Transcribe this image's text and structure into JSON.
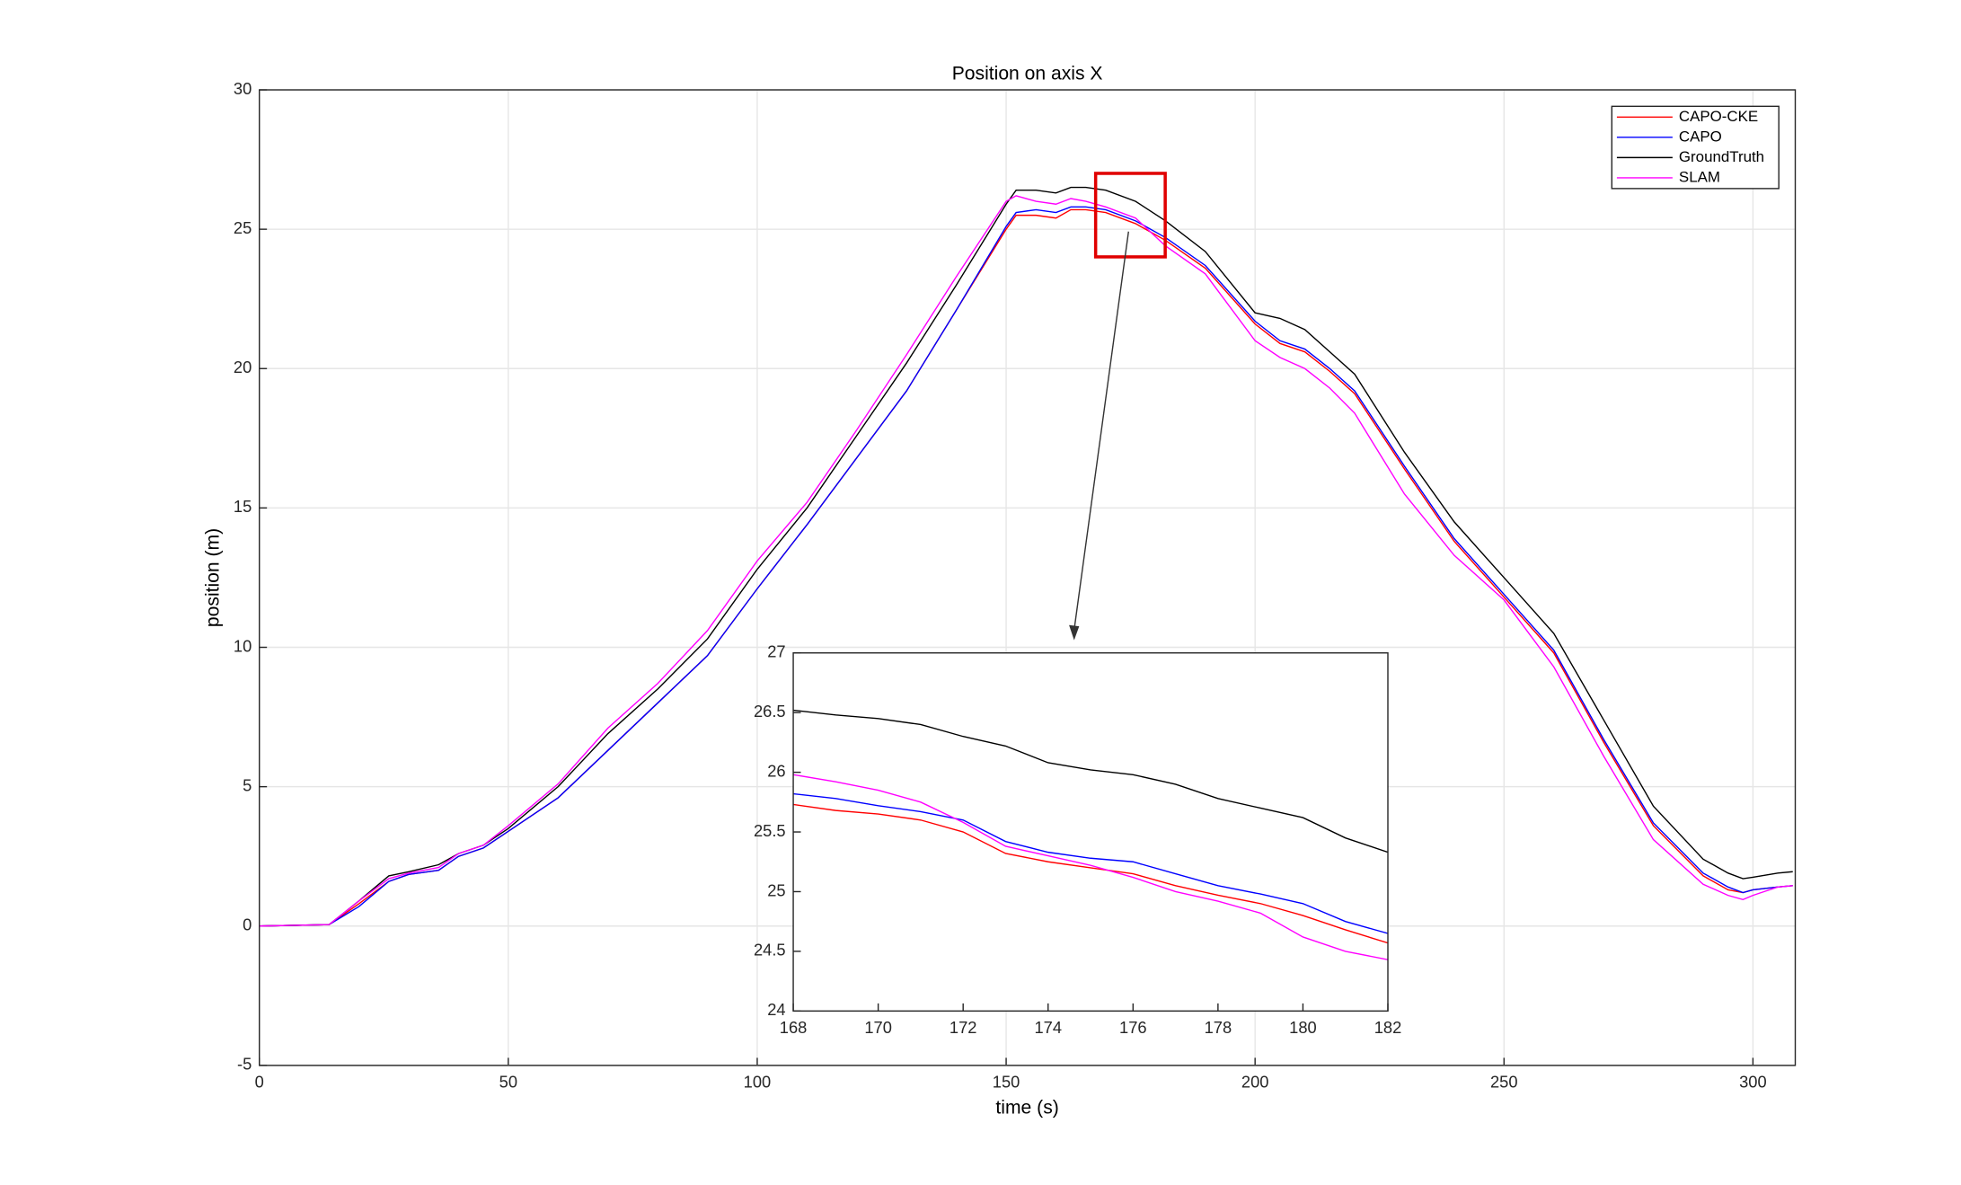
{
  "chart_data": [
    {
      "type": "line",
      "title": "Position on axis X",
      "x_label": "time (s)",
      "y_label": "position (m)",
      "x": [
        0,
        14,
        20,
        26,
        30,
        36,
        40,
        45,
        50,
        60,
        70,
        80,
        90,
        100,
        110,
        120,
        130,
        140,
        150,
        152,
        156,
        160,
        163,
        166,
        170,
        176,
        182,
        190,
        200,
        205,
        210,
        215,
        220,
        230,
        240,
        250,
        260,
        270,
        280,
        290,
        295,
        298,
        300,
        305,
        308
      ],
      "series": [
        {
          "name": "CAPO-CKE",
          "color": "#ff0000",
          "values": [
            0,
            0.05,
            0.8,
            1.6,
            1.85,
            2.0,
            2.5,
            2.8,
            3.4,
            4.6,
            6.3,
            8.0,
            9.7,
            12.1,
            14.4,
            16.8,
            19.2,
            22.1,
            25.0,
            25.5,
            25.5,
            25.4,
            25.7,
            25.7,
            25.6,
            25.2,
            24.6,
            23.6,
            21.6,
            20.9,
            20.6,
            19.9,
            19.1,
            16.4,
            13.8,
            11.8,
            9.8,
            6.6,
            3.6,
            1.8,
            1.3,
            1.2,
            1.3,
            1.4,
            1.45
          ]
        },
        {
          "name": "CAPO",
          "color": "#0000ff",
          "values": [
            0,
            0.05,
            0.7,
            1.6,
            1.85,
            2.0,
            2.5,
            2.8,
            3.4,
            4.6,
            6.3,
            8.0,
            9.7,
            12.1,
            14.4,
            16.8,
            19.2,
            22.1,
            25.1,
            25.6,
            25.7,
            25.6,
            25.8,
            25.8,
            25.7,
            25.3,
            24.7,
            23.7,
            21.7,
            21.0,
            20.7,
            20.0,
            19.2,
            16.5,
            13.9,
            11.9,
            9.9,
            6.7,
            3.7,
            1.9,
            1.4,
            1.2,
            1.3,
            1.4,
            1.45
          ]
        },
        {
          "name": "GroundTruth",
          "color": "#000000",
          "values": [
            0,
            0.05,
            0.9,
            1.8,
            1.95,
            2.2,
            2.6,
            2.9,
            3.5,
            5.0,
            6.9,
            8.5,
            10.3,
            12.8,
            15.0,
            17.6,
            20.2,
            23.0,
            25.9,
            26.4,
            26.4,
            26.3,
            26.5,
            26.5,
            26.4,
            26.0,
            25.3,
            24.2,
            22.0,
            21.8,
            21.4,
            20.6,
            19.8,
            17.0,
            14.5,
            12.5,
            10.5,
            7.4,
            4.3,
            2.4,
            1.9,
            1.7,
            1.75,
            1.9,
            1.95
          ]
        },
        {
          "name": "SLAM",
          "color": "#ff00ff",
          "values": [
            0,
            0.05,
            0.9,
            1.7,
            1.9,
            2.1,
            2.6,
            2.9,
            3.6,
            5.1,
            7.1,
            8.7,
            10.6,
            13.1,
            15.2,
            17.8,
            20.5,
            23.3,
            26.0,
            26.2,
            26.0,
            25.9,
            26.1,
            26.0,
            25.8,
            25.4,
            24.4,
            23.4,
            21.0,
            20.4,
            20.0,
            19.3,
            18.4,
            15.5,
            13.3,
            11.7,
            9.3,
            6.1,
            3.1,
            1.5,
            1.1,
            0.95,
            1.1,
            1.4,
            1.45
          ]
        }
      ],
      "xlim": [
        0,
        308.5
      ],
      "ylim": [
        -5,
        30
      ],
      "xticks": [
        0,
        50,
        100,
        150,
        200,
        250,
        300
      ],
      "yticks": [
        -5,
        0,
        5,
        10,
        15,
        20,
        25,
        30
      ],
      "grid": true,
      "legend": "top-right"
    },
    {
      "type": "line",
      "x": [
        168,
        169,
        170,
        171,
        172,
        173,
        174,
        175,
        176,
        177,
        178,
        179,
        180,
        181,
        182
      ],
      "series": [
        {
          "color": "#ff0000",
          "values": [
            25.73,
            25.68,
            25.65,
            25.6,
            25.5,
            25.32,
            25.25,
            25.2,
            25.15,
            25.05,
            24.97,
            24.9,
            24.8,
            24.68,
            24.57
          ]
        },
        {
          "color": "#0000ff",
          "values": [
            25.82,
            25.78,
            25.72,
            25.67,
            25.6,
            25.42,
            25.33,
            25.28,
            25.25,
            25.15,
            25.05,
            24.98,
            24.9,
            24.75,
            24.65
          ]
        },
        {
          "color": "#000000",
          "values": [
            26.52,
            26.48,
            26.45,
            26.4,
            26.3,
            26.22,
            26.08,
            26.02,
            25.98,
            25.9,
            25.78,
            25.7,
            25.62,
            25.45,
            25.33
          ]
        },
        {
          "color": "#ff00ff",
          "values": [
            25.98,
            25.92,
            25.85,
            25.75,
            25.58,
            25.38,
            25.3,
            25.22,
            25.12,
            25.0,
            24.92,
            24.82,
            24.62,
            24.5,
            24.43
          ]
        }
      ],
      "xlim": [
        168,
        182
      ],
      "ylim": [
        24,
        27
      ],
      "xticks": [
        168,
        170,
        172,
        174,
        176,
        178,
        180,
        182
      ],
      "yticks": [
        24,
        24.5,
        25,
        25.5,
        26,
        26.5,
        27
      ],
      "grid": false
    }
  ]
}
